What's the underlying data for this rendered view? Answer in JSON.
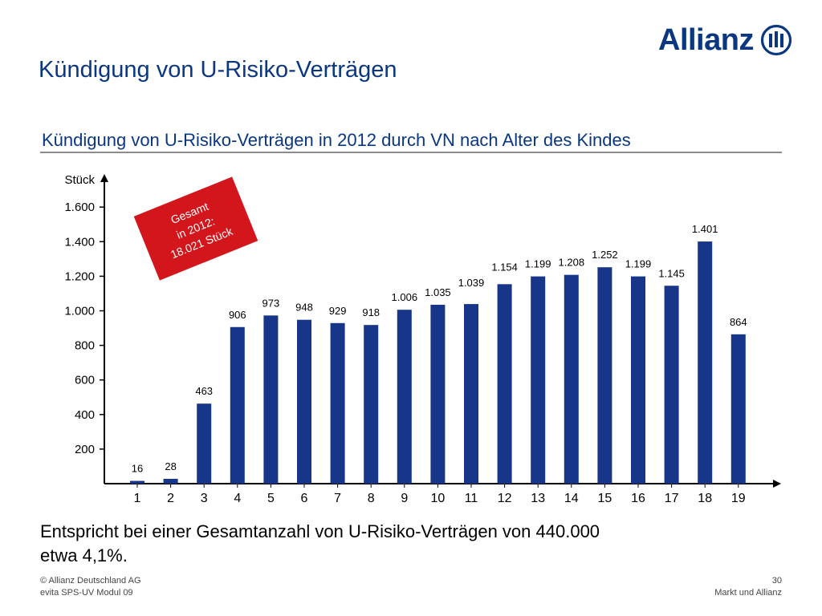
{
  "header": {
    "logo_text": "Allianz",
    "title": "Kündigung von U-Risiko-Verträgen"
  },
  "chart_subtitle": "Kündigung von U-Risiko-Verträgen in 2012 durch VN nach Alter des Kindes",
  "callout": {
    "line1": "Gesamt",
    "line2": "in 2012:",
    "line3": "18.021 Stück"
  },
  "body": {
    "line1": "Entspricht bei einer Gesamtanzahl von U-Risiko-Verträgen von 440.000",
    "line2": "etwa 4,1%."
  },
  "footer": {
    "copyright": "© Allianz Deutschland AG",
    "module": "evita SPS-UV Modul 09",
    "page_number": "30",
    "section": "Markt und Allianz"
  },
  "colors": {
    "brand_blue": "#0a3780",
    "bar_blue": "#17368a",
    "callout_red": "#d3161c"
  },
  "chart_data": {
    "type": "bar",
    "title": "",
    "xlabel": "",
    "ylabel": "Stück",
    "categories": [
      "1",
      "2",
      "3",
      "4",
      "5",
      "6",
      "7",
      "8",
      "9",
      "10",
      "11",
      "12",
      "13",
      "14",
      "15",
      "16",
      "17",
      "18",
      "19"
    ],
    "values": [
      16,
      28,
      463,
      906,
      973,
      948,
      929,
      918,
      1006,
      1035,
      1039,
      1154,
      1199,
      1208,
      1252,
      1199,
      1145,
      1401,
      864
    ],
    "value_labels": [
      "16",
      "28",
      "463",
      "906",
      "973",
      "948",
      "929",
      "918",
      "1.006",
      "1.035",
      "1.039",
      "1.154",
      "1.199",
      "1.208",
      "1.252",
      "1.199",
      "1.145",
      "1.401",
      "864"
    ],
    "y_ticks": [
      200,
      400,
      600,
      800,
      1000,
      1200,
      1400,
      1600
    ],
    "y_tick_labels": [
      "200",
      "400",
      "600",
      "800",
      "1.000",
      "1.200",
      "1.400",
      "1.600"
    ],
    "ylim": [
      0,
      1750
    ],
    "grid": false,
    "legend": "none"
  }
}
